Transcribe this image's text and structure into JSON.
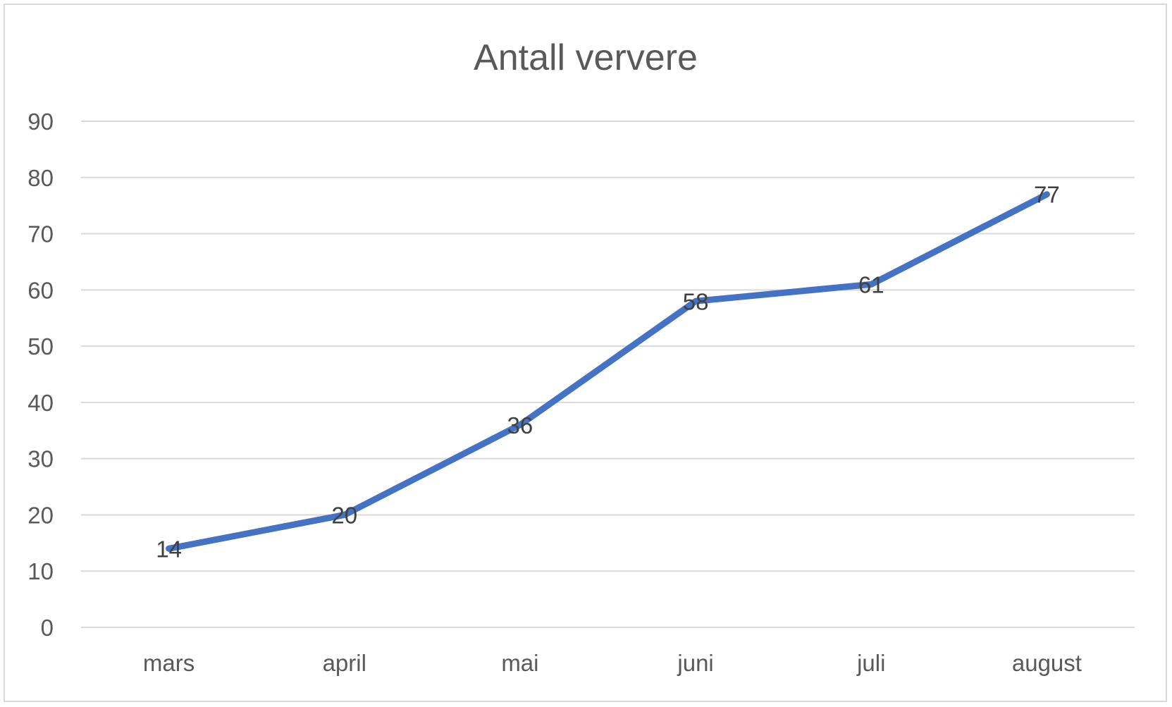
{
  "chart_data": {
    "type": "line",
    "title": "Antall ververe",
    "xlabel": "",
    "ylabel": "",
    "categories": [
      "mars",
      "april",
      "mai",
      "juni",
      "juli",
      "august"
    ],
    "series": [
      {
        "values": [
          14,
          20,
          36,
          58,
          61,
          77
        ],
        "color": "#4472c4"
      }
    ],
    "ylim": [
      0,
      90
    ],
    "yticks": [
      0,
      10,
      20,
      30,
      40,
      50,
      60,
      70,
      80,
      90
    ],
    "grid": true,
    "legend": "none",
    "data_labels": true
  }
}
